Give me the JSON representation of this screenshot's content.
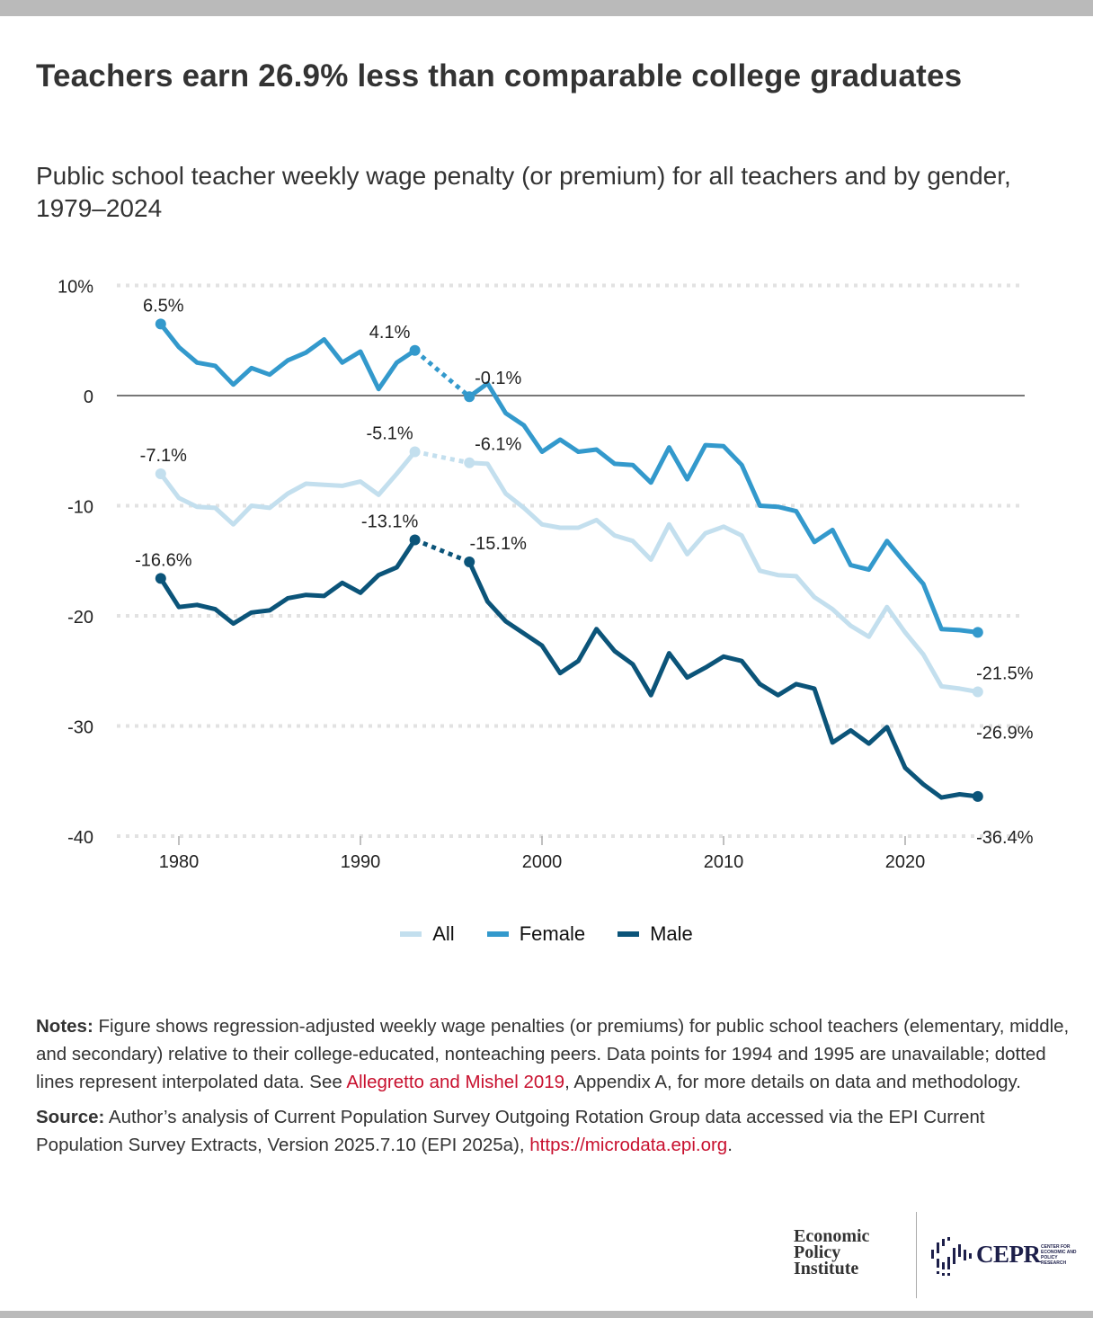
{
  "header": {
    "title": "Teachers earn 26.9% less than comparable college graduates",
    "subtitle": "Public school teacher weekly wage penalty (or premium) for all teachers and by gender, 1979–2024"
  },
  "chart_data": {
    "type": "line",
    "title": "Teachers earn 26.9% less than comparable college graduates",
    "subtitle": "Public school teacher weekly wage penalty (or premium) for all teachers and by gender, 1979–2024",
    "xlabel": "",
    "ylabel": "",
    "xlim": [
      1977,
      2026
    ],
    "ylim": [
      -40,
      10
    ],
    "x_ticks": [
      1980,
      1990,
      2000,
      2010,
      2020
    ],
    "y_ticks": [
      10,
      0,
      -10,
      -20,
      -30,
      -40
    ],
    "y_tick_labels": [
      "10%",
      "0",
      "-10",
      "-20",
      "-30",
      "-40"
    ],
    "grid": true,
    "legend_position": "bottom-center",
    "interpolated_years": [
      1994,
      1995
    ],
    "x": [
      1979,
      1980,
      1981,
      1982,
      1983,
      1984,
      1985,
      1986,
      1987,
      1988,
      1989,
      1990,
      1991,
      1992,
      1993,
      1996,
      1997,
      1998,
      1999,
      2000,
      2001,
      2002,
      2003,
      2004,
      2005,
      2006,
      2007,
      2008,
      2009,
      2010,
      2011,
      2012,
      2013,
      2014,
      2015,
      2016,
      2017,
      2018,
      2019,
      2020,
      2021,
      2022,
      2023,
      2024
    ],
    "series": [
      {
        "name": "All",
        "color": "#c3dfee",
        "values": [
          -7.1,
          -9.3,
          -10.1,
          -10.2,
          -11.7,
          -10.0,
          -10.2,
          -8.9,
          -8.0,
          -8.1,
          -8.2,
          -7.8,
          -9.0,
          -7.1,
          -5.1,
          -6.1,
          -6.2,
          -8.9,
          -10.2,
          -11.7,
          -12.0,
          -12.0,
          -11.3,
          -12.7,
          -13.2,
          -14.9,
          -11.7,
          -14.4,
          -12.5,
          -11.9,
          -12.7,
          -15.9,
          -16.3,
          -16.4,
          -18.3,
          -19.4,
          -20.9,
          -21.9,
          -19.2,
          -21.5,
          -23.5,
          -26.4,
          -26.6,
          -26.9
        ]
      },
      {
        "name": "Female",
        "color": "#3399cc",
        "values": [
          6.5,
          4.4,
          3.0,
          2.7,
          1.0,
          2.5,
          1.9,
          3.2,
          3.9,
          5.1,
          3.0,
          4.0,
          0.6,
          3.0,
          4.1,
          -0.1,
          1.1,
          -1.6,
          -2.7,
          -5.1,
          -4.0,
          -5.1,
          -4.9,
          -6.2,
          -6.3,
          -7.9,
          -4.7,
          -7.6,
          -4.5,
          -4.6,
          -6.3,
          -10.0,
          -10.1,
          -10.5,
          -13.3,
          -12.2,
          -15.4,
          -15.8,
          -13.2,
          -15.2,
          -17.1,
          -21.2,
          -21.3,
          -21.5
        ]
      },
      {
        "name": "Male",
        "color": "#0b5479",
        "values": [
          -16.6,
          -19.2,
          -19.0,
          -19.4,
          -20.7,
          -19.7,
          -19.5,
          -18.4,
          -18.1,
          -18.2,
          -17.0,
          -17.9,
          -16.3,
          -15.6,
          -13.1,
          -15.1,
          -18.7,
          -20.5,
          -21.6,
          -22.7,
          -25.2,
          -24.1,
          -21.2,
          -23.2,
          -24.4,
          -27.2,
          -23.4,
          -25.6,
          -24.7,
          -23.7,
          -24.1,
          -26.2,
          -27.2,
          -26.2,
          -26.6,
          -31.5,
          -30.4,
          -31.6,
          -30.1,
          -33.8,
          -35.3,
          -36.5,
          -36.2,
          -36.4
        ]
      }
    ],
    "annotations": [
      {
        "series": "Female",
        "x": 1979,
        "label": "6.5%"
      },
      {
        "series": "Female",
        "x": 1993,
        "label": "4.1%"
      },
      {
        "series": "Female",
        "x": 1996,
        "label": "-0.1%"
      },
      {
        "series": "Female",
        "x": 2024,
        "label": "-21.5%"
      },
      {
        "series": "All",
        "x": 1979,
        "label": "-7.1%"
      },
      {
        "series": "All",
        "x": 1993,
        "label": "-5.1%"
      },
      {
        "series": "All",
        "x": 1996,
        "label": "-6.1%"
      },
      {
        "series": "All",
        "x": 2024,
        "label": "-26.9%"
      },
      {
        "series": "Male",
        "x": 1979,
        "label": "-16.6%"
      },
      {
        "series": "Male",
        "x": 1993,
        "label": "-13.1%"
      },
      {
        "series": "Male",
        "x": 1996,
        "label": "-15.1%"
      },
      {
        "series": "Male",
        "x": 2024,
        "label": "-36.4%"
      }
    ]
  },
  "legend": {
    "items": [
      {
        "label": "All",
        "color": "#c3dfee"
      },
      {
        "label": "Female",
        "color": "#3399cc"
      },
      {
        "label": "Male",
        "color": "#0b5479"
      }
    ]
  },
  "notes": {
    "notes_label": "Notes:",
    "notes_text": " Figure shows regression-adjusted weekly wage penalties (or premiums) for public school teachers (elementary, middle, and secondary) relative to their college-educated, nonteaching peers. Data points for 1994 and 1995 are unavailable; dotted lines represent interpolated data. See ",
    "notes_link": "Allegretto and Mishel 2019",
    "notes_tail": ", Appendix A, for more details on data and methodology.",
    "source_label": "Source:",
    "source_text": " Author’s analysis of Current Population Survey Outgoing Rotation Group data accessed via the EPI Current Population Survey Extracts, Version 2025.7.10 (EPI 2025a),  ",
    "source_link": "https://microdata.epi.org",
    "source_tail": "."
  },
  "logos": {
    "epi_line1": "Economic",
    "epi_line2": "Policy",
    "epi_line3": "Institute",
    "cepr": "CEPR",
    "cepr_sub": "CENTER FOR ECONOMIC AND POLICY RESEARCH"
  }
}
